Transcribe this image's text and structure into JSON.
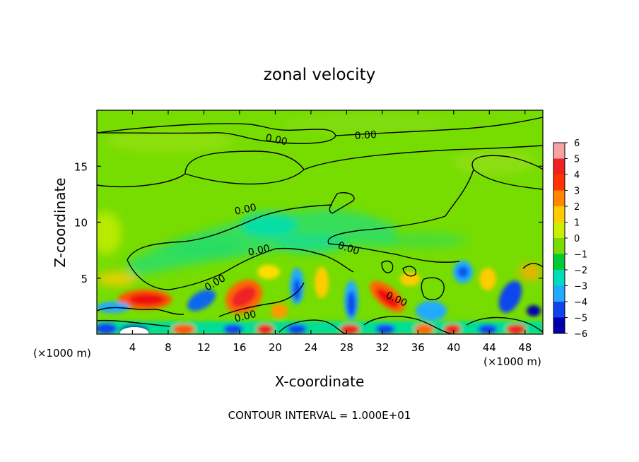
{
  "chart_data": {
    "type": "heatmap",
    "title": "zonal velocity",
    "xlabel": "X-coordinate",
    "ylabel": "Z-coordinate",
    "x_unit": "(×1000 m)",
    "x_unit_right": "(×1000 m)",
    "xlim": [
      0,
      50
    ],
    "ylim": [
      0,
      20
    ],
    "x_ticks": [
      4,
      8,
      12,
      16,
      20,
      24,
      28,
      32,
      36,
      40,
      44,
      48
    ],
    "y_ticks": [
      5,
      10,
      15
    ],
    "colorbar": {
      "levels": [
        6,
        5,
        4,
        3,
        2,
        1,
        0,
        -1,
        -2,
        -3,
        -4,
        -5,
        -6
      ],
      "colors": [
        "#f5a3a3",
        "#ee2222",
        "#ff3300",
        "#ff8800",
        "#ffcc00",
        "#ccee00",
        "#77dd00",
        "#00cc33",
        "#00ddbb",
        "#22aaff",
        "#1144ee",
        "#0000aa",
        "#660099"
      ]
    },
    "contour_labels": [
      {
        "text": "0.00",
        "x": 16.5,
        "y": 17.8
      },
      {
        "text": "0.00",
        "x": 26.5,
        "y": 17.9
      },
      {
        "text": "0.00",
        "x": 17.3,
        "y": 11.0
      },
      {
        "text": "0.00",
        "x": 18.5,
        "y": 7.4
      },
      {
        "text": "0.00",
        "x": 28.5,
        "y": 7.6
      },
      {
        "text": "0.00",
        "x": 13.5,
        "y": 4.4
      },
      {
        "text": "0.00",
        "x": 33.5,
        "y": 3.3
      },
      {
        "text": "0.00",
        "x": 17.0,
        "y": 1.6
      }
    ],
    "footer": "CONTOUR INTERVAL = 1.000E+01"
  }
}
